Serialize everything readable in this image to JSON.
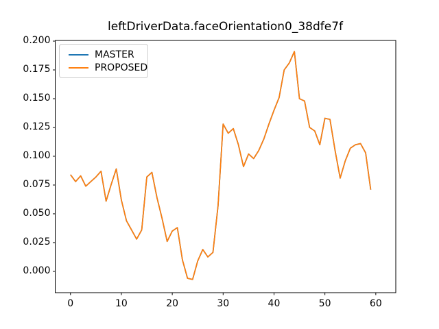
{
  "title": "leftDriverData.faceOrientation0_38dfe7f",
  "legend": {
    "items": [
      {
        "label": "MASTER",
        "color": "#1f77b4"
      },
      {
        "label": "PROPOSED",
        "color": "#ff7f0e"
      }
    ]
  },
  "chart_data": {
    "type": "line",
    "title": "leftDriverData.faceOrientation0_38dfe7f",
    "xlabel": "",
    "ylabel": "",
    "grid": false,
    "legend_position": "upper left",
    "xlim": [
      -3.0,
      63.93
    ],
    "ylim": [
      -0.0185,
      0.2006
    ],
    "x_ticks": [
      0,
      10,
      20,
      30,
      40,
      50,
      60
    ],
    "x_tick_labels": [
      "0",
      "10",
      "20",
      "30",
      "40",
      "50",
      "60"
    ],
    "y_ticks": [
      0.0,
      0.025,
      0.05,
      0.075,
      0.1,
      0.125,
      0.15,
      0.175,
      0.2
    ],
    "y_tick_labels": [
      "0.000",
      "0.025",
      "0.050",
      "0.075",
      "0.100",
      "0.125",
      "0.150",
      "0.175",
      "0.200"
    ],
    "x": [
      0,
      1,
      2,
      3,
      4,
      5,
      6,
      7,
      8,
      9,
      10,
      11,
      12,
      13,
      14,
      15,
      16,
      17,
      18,
      19,
      20,
      21,
      22,
      23,
      24,
      25,
      26,
      27,
      28,
      29,
      30,
      31,
      32,
      33,
      34,
      35,
      36,
      37,
      38,
      39,
      40,
      41,
      42,
      43,
      44,
      45,
      46,
      47,
      48,
      49,
      50,
      51,
      52,
      53,
      54,
      55,
      56,
      57,
      58,
      59
    ],
    "series": [
      {
        "name": "MASTER",
        "color": "#1f77b4",
        "values": [
          0.084,
          0.078,
          0.083,
          0.074,
          0.078,
          0.082,
          0.087,
          0.061,
          0.0755,
          0.089,
          0.062,
          0.044,
          0.036,
          0.028,
          0.036,
          0.082,
          0.086,
          0.064,
          0.046,
          0.026,
          0.035,
          0.038,
          0.01,
          -0.006,
          -0.007,
          0.009,
          0.019,
          0.0125,
          0.0165,
          0.057,
          0.128,
          0.12,
          0.124,
          0.11,
          0.091,
          0.102,
          0.098,
          0.105,
          0.115,
          0.128,
          0.14,
          0.151,
          0.175,
          0.181,
          0.191,
          0.15,
          0.148,
          0.125,
          0.122,
          0.11,
          0.133,
          0.132,
          0.105,
          0.081,
          0.096,
          0.107,
          0.11,
          0.111,
          0.103,
          0.071
        ]
      },
      {
        "name": "PROPOSED",
        "color": "#ff7f0e",
        "values": [
          0.084,
          0.078,
          0.083,
          0.074,
          0.078,
          0.082,
          0.087,
          0.061,
          0.0755,
          0.089,
          0.062,
          0.044,
          0.036,
          0.028,
          0.036,
          0.082,
          0.086,
          0.064,
          0.046,
          0.026,
          0.035,
          0.038,
          0.01,
          -0.006,
          -0.007,
          0.009,
          0.019,
          0.0125,
          0.0165,
          0.057,
          0.128,
          0.12,
          0.124,
          0.11,
          0.091,
          0.102,
          0.098,
          0.105,
          0.115,
          0.128,
          0.14,
          0.151,
          0.175,
          0.181,
          0.191,
          0.15,
          0.148,
          0.125,
          0.122,
          0.11,
          0.133,
          0.132,
          0.105,
          0.081,
          0.096,
          0.107,
          0.11,
          0.111,
          0.103,
          0.071
        ]
      }
    ]
  }
}
